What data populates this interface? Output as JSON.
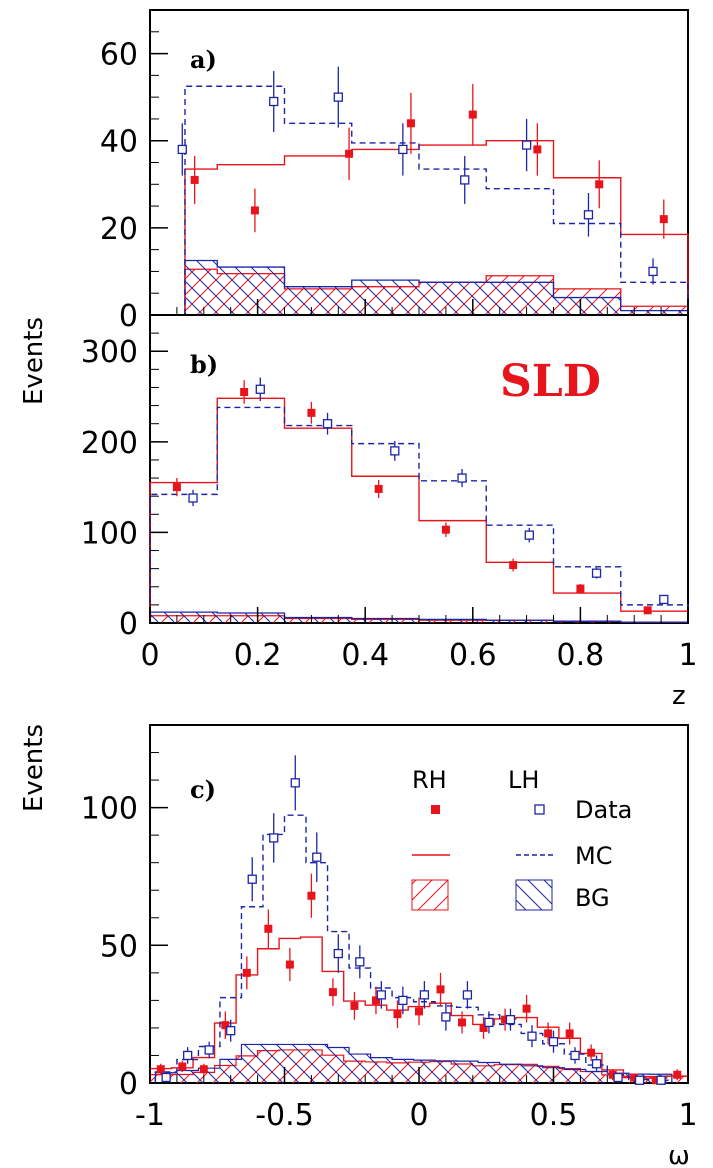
{
  "colors": {
    "rh": "#e8141b",
    "lh": "#1c24a8",
    "axis": "#000000"
  },
  "labels": {
    "events_top": "Events",
    "events_bottom": "Events",
    "xlabel_top": "z",
    "xlabel_bottom": "ω",
    "sld": "SLD",
    "legend_rh": "RH",
    "legend_lh": "LH",
    "legend_data": "Data",
    "legend_mc": "MC",
    "legend_bg": "BG"
  },
  "chart_data": [
    {
      "panel": "a)",
      "type": "scatter",
      "xlim": [
        0,
        1
      ],
      "ylim": [
        0,
        70
      ],
      "yticks": [
        "0",
        "20",
        "40",
        "60"
      ],
      "xlabel": "",
      "ylabel": "Events",
      "series": [
        {
          "name": "RH Data",
          "x": [
            0.083,
            0.195,
            0.37,
            0.485,
            0.6,
            0.72,
            0.835,
            0.955
          ],
          "y": [
            31,
            24,
            37,
            44,
            46,
            38,
            30,
            22
          ],
          "err": [
            5.5,
            5,
            6,
            7,
            7,
            6,
            5.5,
            4.5
          ]
        },
        {
          "name": "LH Data",
          "x": [
            0.06,
            0.23,
            0.35,
            0.47,
            0.585,
            0.7,
            0.815,
            0.935
          ],
          "y": [
            38,
            49,
            50,
            38,
            31,
            39,
            23,
            10
          ],
          "err": [
            6,
            7,
            7,
            6,
            5.5,
            6,
            5,
            3
          ]
        },
        {
          "name": "RH MC",
          "edges": [
            0.065,
            0.125,
            0.25,
            0.375,
            0.5,
            0.625,
            0.75,
            0.875,
            1.0
          ],
          "values": [
            33.5,
            34.5,
            36.5,
            38,
            39,
            40,
            31.5,
            18.5
          ]
        },
        {
          "name": "LH MC",
          "edges": [
            0.065,
            0.125,
            0.25,
            0.375,
            0.5,
            0.625,
            0.75,
            0.875,
            1.0
          ],
          "values": [
            52.5,
            52.5,
            44,
            39.5,
            33.5,
            29,
            21,
            7.5
          ]
        },
        {
          "name": "RH BG",
          "edges": [
            0.065,
            0.125,
            0.25,
            0.375,
            0.5,
            0.625,
            0.75,
            0.875,
            1.0
          ],
          "values": [
            10.5,
            9.5,
            6,
            6.5,
            7.5,
            9,
            6,
            2
          ]
        },
        {
          "name": "LH BG",
          "edges": [
            0.065,
            0.125,
            0.25,
            0.375,
            0.5,
            0.625,
            0.75,
            0.875,
            1.0
          ],
          "values": [
            12.5,
            11,
            6.5,
            8,
            7.5,
            7.5,
            4,
            1
          ]
        }
      ]
    },
    {
      "panel": "b)",
      "type": "scatter",
      "xlim": [
        0,
        1
      ],
      "ylim": [
        0,
        340
      ],
      "yticks": [
        "0",
        "100",
        "200",
        "300"
      ],
      "xticks": [
        "0",
        "0.2",
        "0.4",
        "0.6",
        "0.8",
        "1"
      ],
      "xlabel": "z",
      "ylabel": "",
      "series": [
        {
          "name": "RH Data",
          "x": [
            0.05,
            0.175,
            0.3,
            0.425,
            0.55,
            0.675,
            0.8,
            0.925
          ],
          "y": [
            150,
            255,
            232,
            148,
            103,
            64,
            38,
            14
          ],
          "err": [
            10,
            13,
            12,
            10,
            8,
            7,
            5,
            3
          ]
        },
        {
          "name": "LH Data",
          "x": [
            0.08,
            0.205,
            0.33,
            0.455,
            0.58,
            0.705,
            0.83,
            0.955
          ],
          "y": [
            138,
            258,
            220,
            190,
            160,
            97,
            55,
            26
          ],
          "err": [
            9,
            13,
            12,
            11,
            10,
            8,
            6,
            4
          ]
        },
        {
          "name": "RH MC",
          "edges": [
            0,
            0.125,
            0.25,
            0.375,
            0.5,
            0.625,
            0.75,
            0.875,
            1.0
          ],
          "values": [
            155,
            248,
            215,
            162,
            113,
            67,
            33,
            13
          ]
        },
        {
          "name": "LH MC",
          "edges": [
            0,
            0.125,
            0.25,
            0.375,
            0.5,
            0.625,
            0.75,
            0.875,
            1.0
          ],
          "values": [
            142,
            238,
            218,
            198,
            157,
            108,
            62,
            20
          ]
        },
        {
          "name": "RH BG",
          "edges": [
            0,
            0.125,
            0.25,
            0.375,
            0.5,
            0.625,
            0.75,
            0.875,
            1.0
          ],
          "values": [
            8,
            8,
            5,
            4,
            3,
            3,
            2,
            1
          ]
        },
        {
          "name": "LH BG",
          "edges": [
            0,
            0.125,
            0.25,
            0.375,
            0.5,
            0.625,
            0.75,
            0.875,
            1.0
          ],
          "values": [
            12,
            11,
            6,
            5,
            4,
            3,
            2,
            1
          ]
        }
      ]
    },
    {
      "panel": "c)",
      "type": "scatter",
      "xlim": [
        -1,
        1
      ],
      "ylim": [
        0,
        130
      ],
      "yticks": [
        "0",
        "50",
        "100"
      ],
      "xticks": [
        "-1",
        "-0.5",
        "0",
        "0.5",
        "1"
      ],
      "xlabel": "ω",
      "ylabel": "Events",
      "legend": {
        "columns": [
          "RH",
          "LH"
        ],
        "rows": [
          "Data",
          "MC",
          "BG"
        ],
        "position": "top-right"
      },
      "series": [
        {
          "name": "RH Data",
          "x": [
            -0.96,
            -0.88,
            -0.8,
            -0.72,
            -0.64,
            -0.56,
            -0.48,
            -0.4,
            -0.32,
            -0.24,
            -0.16,
            -0.08,
            0.0,
            0.08,
            0.16,
            0.24,
            0.32,
            0.4,
            0.48,
            0.56,
            0.64,
            0.72,
            0.8,
            0.88,
            0.96
          ],
          "y": [
            5,
            6,
            5,
            21,
            40,
            56,
            43,
            68,
            33,
            28,
            30,
            25,
            26,
            34,
            22,
            20,
            23,
            27,
            18,
            18,
            11,
            3,
            2,
            1,
            3
          ],
          "err": [
            2,
            2,
            2,
            5,
            6,
            7,
            6,
            8,
            5,
            5,
            5,
            5,
            5,
            6,
            4,
            4,
            4,
            5,
            4,
            4,
            3,
            2,
            1,
            1,
            2
          ]
        },
        {
          "name": "LH Data",
          "x": [
            -0.94,
            -0.86,
            -0.78,
            -0.7,
            -0.62,
            -0.54,
            -0.46,
            -0.38,
            -0.3,
            -0.22,
            -0.14,
            -0.06,
            0.02,
            0.1,
            0.18,
            0.26,
            0.34,
            0.42,
            0.5,
            0.58,
            0.66,
            0.74,
            0.82,
            0.9
          ],
          "y": [
            2,
            10,
            12,
            19,
            74,
            89,
            109,
            82,
            47,
            44,
            32,
            30,
            32,
            24,
            32,
            22,
            23,
            17,
            15,
            10,
            7,
            2,
            1,
            1
          ],
          "err": [
            1,
            3,
            3,
            4,
            8,
            9,
            10,
            9,
            7,
            6,
            5,
            5,
            5,
            5,
            5,
            4,
            4,
            4,
            4,
            3,
            3,
            1,
            1,
            1
          ]
        }
      ]
    }
  ]
}
